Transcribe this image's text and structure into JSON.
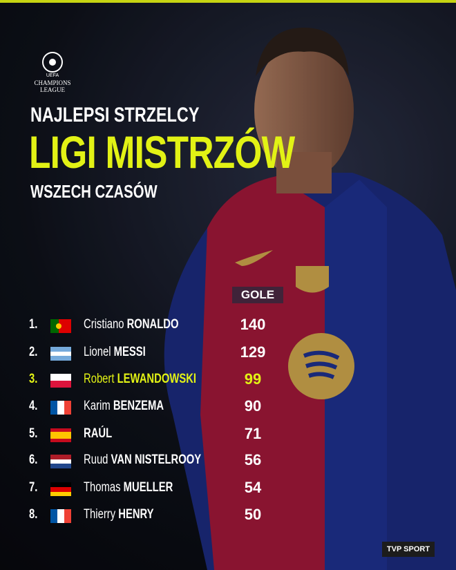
{
  "logo": {
    "small": "UEFA",
    "line1": "CHAMPIONS",
    "line2": "LEAGUE"
  },
  "header": {
    "line1": "NAJLEPSI STRZELCY",
    "line2": "LIGI MISTRZÓW",
    "line3": "WSZECH CZASÓW"
  },
  "table": {
    "column": "GOLE",
    "rows": [
      {
        "rank": "1.",
        "first": "Cristiano",
        "last": "RONALDO",
        "goals": "140"
      },
      {
        "rank": "2.",
        "first": "Lionel",
        "last": "MESSI",
        "goals": "129"
      },
      {
        "rank": "3.",
        "first": "Robert",
        "last": "LEWANDOWSKI",
        "goals": "99"
      },
      {
        "rank": "4.",
        "first": "Karim",
        "last": "BENZEMA",
        "goals": "90"
      },
      {
        "rank": "5.",
        "last": "RAÚL",
        "goals": "71"
      },
      {
        "rank": "6.",
        "first": "Ruud",
        "last": "VAN NISTELROOY",
        "goals": "56"
      },
      {
        "rank": "7.",
        "first": "Thomas",
        "last": "MUELLER",
        "goals": "54"
      },
      {
        "rank": "8.",
        "first": "Thierry",
        "last": "HENRY",
        "goals": "50"
      }
    ]
  },
  "footer": {
    "brand": "TVP SPORT"
  }
}
